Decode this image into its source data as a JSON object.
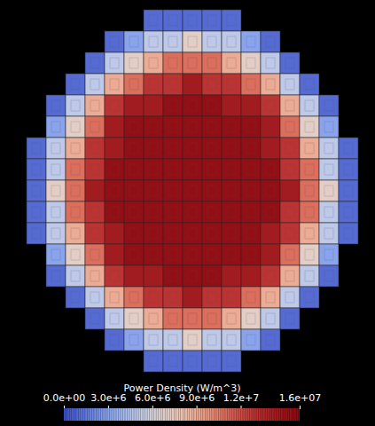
{
  "chart_data": {
    "type": "heatmap",
    "tick_labels": false,
    "colorbar": {
      "label": "Power Density (W/m^3)",
      "range": [
        0,
        16000000.0
      ],
      "ticks": [
        {
          "value": 0,
          "label": "0.0e+00"
        },
        {
          "value": 3000000.0,
          "label": "3.0e+6"
        },
        {
          "value": 6000000.0,
          "label": "6.0e+6"
        },
        {
          "value": 9000000.0,
          "label": "9.0e+6"
        },
        {
          "value": 12000000.0,
          "label": "1.2e+7"
        },
        {
          "value": 16000000.0,
          "label": "1.6e+07"
        }
      ]
    },
    "cells": [
      [
        null,
        null,
        null,
        null,
        null,
        null,
        1000000.0,
        1000000.0,
        1000000.0,
        1000000.0,
        1000000.0,
        null,
        null,
        null,
        null,
        null,
        null
      ],
      [
        null,
        null,
        null,
        null,
        1000000.0,
        3000000.0,
        5000000.0,
        5000000.0,
        7000000.0,
        5000000.0,
        5000000.0,
        3000000.0,
        1000000.0,
        null,
        null,
        null,
        null
      ],
      [
        null,
        null,
        null,
        1000000.0,
        5000000.0,
        7000000.0,
        9000000.0,
        11000000.0,
        11000000.0,
        11000000.0,
        9000000.0,
        7000000.0,
        5000000.0,
        1000000.0,
        null,
        null,
        null
      ],
      [
        null,
        null,
        1000000.0,
        5000000.0,
        9000000.0,
        11000000.0,
        13000000.0,
        13000000.0,
        14500000.0,
        13000000.0,
        13000000.0,
        11000000.0,
        9000000.0,
        5000000.0,
        1000000.0,
        null,
        null
      ],
      [
        null,
        1000000.0,
        5000000.0,
        9000000.0,
        13000000.0,
        14500000.0,
        14500000.0,
        15500000.0,
        15500000.0,
        15500000.0,
        14500000.0,
        14500000.0,
        13000000.0,
        9000000.0,
        5000000.0,
        1000000.0,
        null
      ],
      [
        null,
        3000000.0,
        7000000.0,
        11000000.0,
        14500000.0,
        15500000.0,
        15500000.0,
        15500000.0,
        15500000.0,
        15500000.0,
        15500000.0,
        15500000.0,
        14500000.0,
        11000000.0,
        7000000.0,
        3000000.0,
        null
      ],
      [
        1000000.0,
        5000000.0,
        9000000.0,
        13000000.0,
        14500000.0,
        15500000.0,
        15500000.0,
        15500000.0,
        15500000.0,
        15500000.0,
        15500000.0,
        15500000.0,
        14500000.0,
        13000000.0,
        9000000.0,
        5000000.0,
        1000000.0
      ],
      [
        1000000.0,
        5000000.0,
        11000000.0,
        13000000.0,
        15500000.0,
        15500000.0,
        15500000.0,
        15500000.0,
        15500000.0,
        15500000.0,
        15500000.0,
        15500000.0,
        15500000.0,
        13000000.0,
        11000000.0,
        5000000.0,
        1000000.0
      ],
      [
        1000000.0,
        7000000.0,
        11000000.0,
        14500000.0,
        15500000.0,
        15500000.0,
        15500000.0,
        15500000.0,
        15500000.0,
        15500000.0,
        15500000.0,
        15500000.0,
        15500000.0,
        14500000.0,
        11000000.0,
        7000000.0,
        1000000.0
      ],
      [
        1000000.0,
        5000000.0,
        11000000.0,
        13000000.0,
        15500000.0,
        15500000.0,
        15500000.0,
        15500000.0,
        15500000.0,
        15500000.0,
        15500000.0,
        15500000.0,
        15500000.0,
        13000000.0,
        11000000.0,
        5000000.0,
        1000000.0
      ],
      [
        1000000.0,
        5000000.0,
        9000000.0,
        13000000.0,
        14500000.0,
        15500000.0,
        15500000.0,
        15500000.0,
        15500000.0,
        15500000.0,
        15500000.0,
        15500000.0,
        14500000.0,
        13000000.0,
        9000000.0,
        5000000.0,
        1000000.0
      ],
      [
        null,
        3000000.0,
        7000000.0,
        11000000.0,
        14500000.0,
        15500000.0,
        15500000.0,
        15500000.0,
        15500000.0,
        15500000.0,
        15500000.0,
        15500000.0,
        14500000.0,
        11000000.0,
        7000000.0,
        3000000.0,
        null
      ],
      [
        null,
        1000000.0,
        5000000.0,
        9000000.0,
        13000000.0,
        14500000.0,
        14500000.0,
        15500000.0,
        15500000.0,
        15500000.0,
        14500000.0,
        14500000.0,
        13000000.0,
        9000000.0,
        5000000.0,
        1000000.0,
        null
      ],
      [
        null,
        null,
        1000000.0,
        5000000.0,
        9000000.0,
        11000000.0,
        13000000.0,
        13000000.0,
        14500000.0,
        13000000.0,
        13000000.0,
        11000000.0,
        9000000.0,
        5000000.0,
        1000000.0,
        null,
        null
      ],
      [
        null,
        null,
        null,
        1000000.0,
        5000000.0,
        7000000.0,
        9000000.0,
        11000000.0,
        11000000.0,
        11000000.0,
        9000000.0,
        7000000.0,
        5000000.0,
        1000000.0,
        null,
        null,
        null
      ],
      [
        null,
        null,
        null,
        null,
        1000000.0,
        3000000.0,
        5000000.0,
        5000000.0,
        7000000.0,
        5000000.0,
        5000000.0,
        3000000.0,
        1000000.0,
        null,
        null,
        null,
        null
      ],
      [
        null,
        null,
        null,
        null,
        null,
        null,
        1000000.0,
        1000000.0,
        1000000.0,
        1000000.0,
        1000000.0,
        null,
        null,
        null,
        null,
        null,
        null
      ]
    ]
  }
}
